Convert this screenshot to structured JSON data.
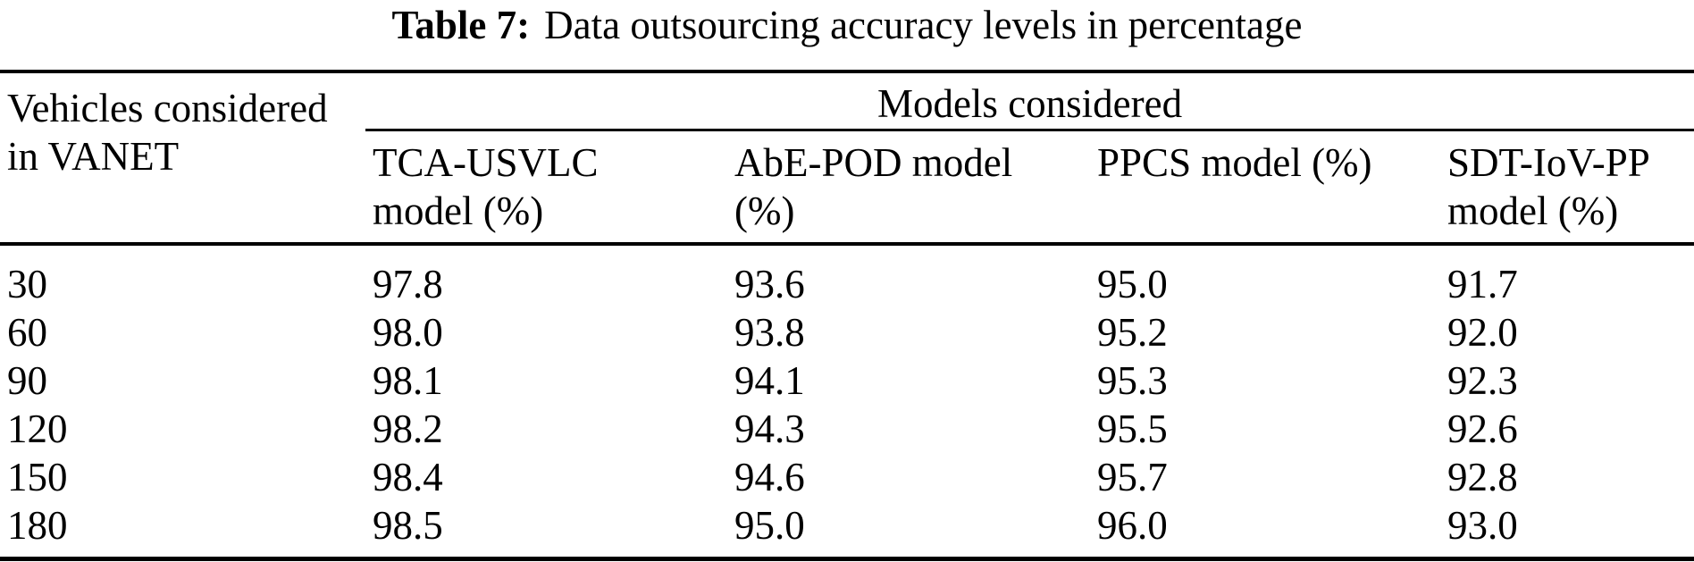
{
  "caption": {
    "label": "Table 7:",
    "text": "Data outsourcing accuracy levels in percentage"
  },
  "table": {
    "corner_header": "Vehicles considered\nin VANET",
    "group_header": "Models considered",
    "columns": [
      "TCA-USVLC\nmodel (%)",
      "AbE-POD model\n(%)",
      "PPCS model (%)",
      "SDT-IoV-PP\nmodel (%)"
    ],
    "rows": [
      {
        "vehicles": "30",
        "values": [
          "97.8",
          "93.6",
          "95.0",
          "91.7"
        ]
      },
      {
        "vehicles": "60",
        "values": [
          "98.0",
          "93.8",
          "95.2",
          "92.0"
        ]
      },
      {
        "vehicles": "90",
        "values": [
          "98.1",
          "94.1",
          "95.3",
          "92.3"
        ]
      },
      {
        "vehicles": "120",
        "values": [
          "98.2",
          "94.3",
          "95.5",
          "92.6"
        ]
      },
      {
        "vehicles": "150",
        "values": [
          "98.4",
          "94.6",
          "95.7",
          "92.8"
        ]
      },
      {
        "vehicles": "180",
        "values": [
          "98.5",
          "95.0",
          "96.0",
          "93.0"
        ]
      }
    ]
  },
  "colors": {
    "text": "#000000",
    "background": "#ffffff",
    "rule": "#000000"
  }
}
